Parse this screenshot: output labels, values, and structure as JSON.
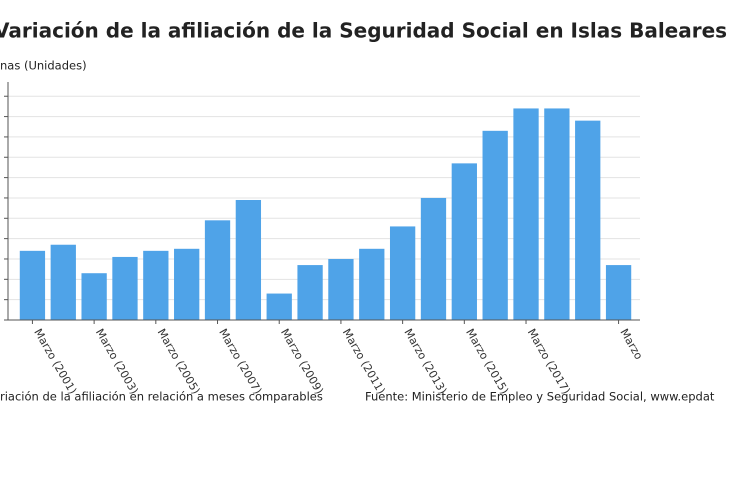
{
  "chart_data": {
    "type": "bar",
    "title": "Variación de la afiliación de la Seguridad Social en Islas Baleares",
    "y_label": "nas (Unidades)",
    "footnote": "riación de la afiliación en relación a meses comparables",
    "source": "Fuente: Ministerio de Empleo y Seguridad Social, www.epdat",
    "categories": [
      "Marzo (2001)",
      null,
      "Marzo (2003)",
      null,
      "Marzo (2005)",
      null,
      "Marzo (2007)",
      null,
      "Marzo (2009)",
      null,
      "Marzo (2011)",
      null,
      "Marzo (2013)",
      null,
      "Marzo (2015)",
      null,
      "Marzo (2017)",
      null,
      null,
      "Marzo"
    ],
    "values": [
      3.4,
      3.7,
      2.3,
      3.1,
      3.4,
      3.5,
      4.9,
      5.9,
      1.3,
      2.7,
      3.0,
      3.5,
      4.6,
      6.0,
      7.7,
      9.3,
      10.4,
      10.4,
      9.8,
      2.7
    ],
    "color": "#4fa3e8",
    "ylim": [
      0,
      11.7
    ],
    "yticks": [
      0,
      1,
      2,
      3,
      4,
      5,
      6,
      7,
      8,
      9,
      10,
      11
    ],
    "grid": true
  }
}
